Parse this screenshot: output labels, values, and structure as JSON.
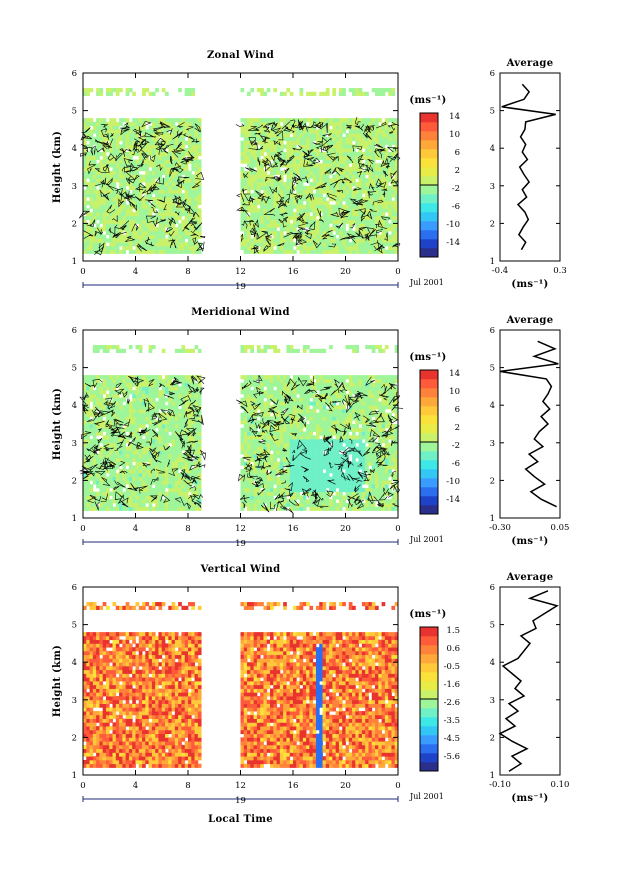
{
  "chart_data": [
    {
      "type": "heatmap",
      "title": "Zonal Wind",
      "ylabel": "Height (km)",
      "xlabel": "",
      "xlim": [
        0,
        24
      ],
      "ylim": [
        1,
        6
      ],
      "xticks": [
        "0",
        "4",
        "8",
        "12",
        "16",
        "20",
        "0"
      ],
      "yticks": [
        "1",
        "2",
        "3",
        "4",
        "5",
        "6"
      ],
      "date_day": "19",
      "date_label": "Jul 2001",
      "data_gap_hours": [
        9,
        12
      ],
      "colorbar": {
        "unit": "(ms⁻¹)",
        "ticks": [
          "14",
          "10",
          "6",
          "2",
          "-2",
          "-6",
          "-10",
          "-14"
        ],
        "range": [
          -16,
          16
        ]
      },
      "field": {
        "base_value": 0,
        "wave_amp": 0.2,
        "burst": null
      },
      "average": {
        "title": "Average",
        "xlabel": "(ms⁻¹)",
        "xticks": [
          "-0.4",
          "0.3"
        ],
        "xlim": [
          -0.4,
          0.3
        ],
        "yticks": [
          "1",
          "2",
          "3",
          "4",
          "5",
          "6"
        ],
        "ylim": [
          1,
          6
        ],
        "height": [
          1.3,
          1.5,
          1.7,
          1.9,
          2.1,
          2.3,
          2.5,
          2.7,
          2.9,
          3.1,
          3.3,
          3.5,
          3.7,
          3.9,
          4.1,
          4.3,
          4.5,
          4.7,
          4.9,
          5.1,
          5.3,
          5.5,
          5.7
        ],
        "values": [
          -0.15,
          -0.1,
          -0.18,
          -0.13,
          -0.07,
          -0.11,
          -0.19,
          -0.09,
          -0.14,
          -0.06,
          -0.12,
          -0.17,
          -0.08,
          -0.14,
          -0.1,
          -0.16,
          -0.11,
          -0.1,
          0.25,
          -0.38,
          -0.12,
          -0.06,
          -0.14
        ]
      }
    },
    {
      "type": "heatmap",
      "title": "Meridional Wind",
      "ylabel": "Height (km)",
      "xlabel": "",
      "xlim": [
        0,
        24
      ],
      "ylim": [
        1,
        6
      ],
      "xticks": [
        "0",
        "4",
        "8",
        "12",
        "16",
        "20",
        "0"
      ],
      "yticks": [
        "1",
        "2",
        "3",
        "4",
        "5",
        "6"
      ],
      "date_day": "19",
      "date_label": "Jul 2001",
      "data_gap_hours": [
        9,
        12
      ],
      "colorbar": {
        "unit": "(ms⁻¹)",
        "ticks": [
          "14",
          "10",
          "6",
          "2",
          "-2",
          "-6",
          "-10",
          "-14"
        ],
        "range": [
          -16,
          16
        ]
      },
      "field": {
        "base_value": -0.5,
        "wave_amp": 0.4,
        "burst": [
          18.5,
          2.4,
          -3
        ]
      },
      "average": {
        "title": "Average",
        "xlabel": "(ms⁻¹)",
        "xticks": [
          "-0.30",
          "0.05"
        ],
        "xlim": [
          -0.3,
          0.05
        ],
        "yticks": [
          "1",
          "2",
          "3",
          "4",
          "5",
          "6"
        ],
        "ylim": [
          1,
          6
        ],
        "height": [
          1.3,
          1.5,
          1.7,
          1.9,
          2.1,
          2.3,
          2.5,
          2.7,
          2.9,
          3.1,
          3.3,
          3.5,
          3.7,
          3.9,
          4.1,
          4.3,
          4.5,
          4.7,
          4.9,
          5.1,
          5.3,
          5.5,
          5.7
        ],
        "values": [
          0.03,
          -0.06,
          -0.12,
          -0.04,
          -0.1,
          -0.15,
          -0.08,
          -0.13,
          -0.05,
          -0.1,
          -0.07,
          -0.02,
          -0.06,
          -0.01,
          -0.05,
          -0.02,
          0.0,
          -0.03,
          -0.3,
          0.04,
          -0.1,
          0.02,
          -0.08
        ]
      }
    },
    {
      "type": "heatmap",
      "title": "Vertical Wind",
      "ylabel": "Height (km)",
      "xlabel": "Local Time",
      "xlim": [
        0,
        24
      ],
      "ylim": [
        1,
        6
      ],
      "xticks": [
        "0",
        "4",
        "8",
        "12",
        "16",
        "20",
        "0"
      ],
      "yticks": [
        "1",
        "2",
        "3",
        "4",
        "5",
        "6"
      ],
      "date_day": "19",
      "date_label": "Jul 2001",
      "data_gap_hours": [
        9,
        12
      ],
      "colorbar": {
        "unit": "(ms⁻¹)",
        "ticks": [
          "1.5",
          "0.6",
          "-0.5",
          "-1.6",
          "-2.6",
          "-3.5",
          "-4.5",
          "-5.6"
        ],
        "range": [
          -6,
          2
        ]
      },
      "field": {
        "base_value": 0.7,
        "wave_amp": 0.35,
        "streak_hour": 17.8,
        "streak_value": -5
      },
      "average": {
        "title": "Average",
        "xlabel": "(ms⁻¹)",
        "xticks": [
          "-0.10",
          "0.10"
        ],
        "xlim": [
          -0.1,
          0.1
        ],
        "yticks": [
          "1",
          "2",
          "3",
          "4",
          "5",
          "6"
        ],
        "ylim": [
          1,
          6
        ],
        "height": [
          1.1,
          1.3,
          1.5,
          1.7,
          1.9,
          2.1,
          2.3,
          2.5,
          2.7,
          2.9,
          3.1,
          3.3,
          3.5,
          3.7,
          3.9,
          4.1,
          4.3,
          4.5,
          4.7,
          4.9,
          5.1,
          5.3,
          5.5,
          5.7,
          5.9
        ],
        "values": [
          -0.07,
          -0.03,
          -0.06,
          -0.01,
          -0.06,
          -0.1,
          -0.05,
          -0.08,
          -0.04,
          -0.07,
          -0.02,
          -0.05,
          -0.03,
          -0.06,
          -0.09,
          -0.04,
          -0.02,
          0.0,
          -0.03,
          0.02,
          0.01,
          0.05,
          0.09,
          0.0,
          0.06
        ]
      }
    }
  ]
}
